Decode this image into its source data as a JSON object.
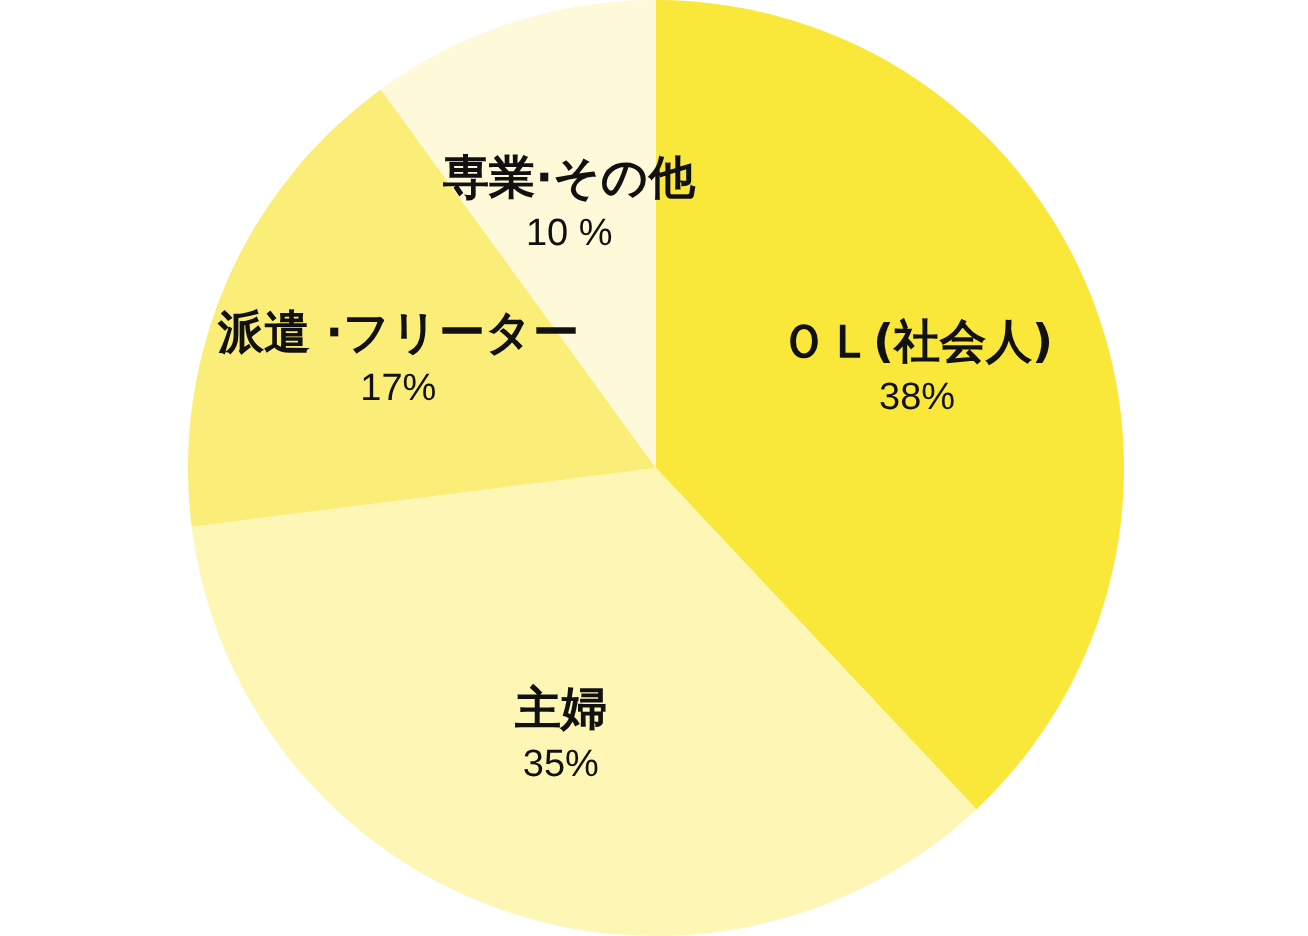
{
  "chart_data": {
    "type": "pie",
    "categories": [
      "ＯＬ(社会人)",
      "主婦",
      "派遣 ·フリーター",
      "専業·その他"
    ],
    "values": [
      38,
      35,
      17,
      10
    ],
    "colors": [
      "#f9e73a",
      "#fef6b4",
      "#fbee78",
      "#fef9d8"
    ],
    "value_labels": [
      "38%",
      "35%",
      "17%",
      "10 %"
    ]
  }
}
